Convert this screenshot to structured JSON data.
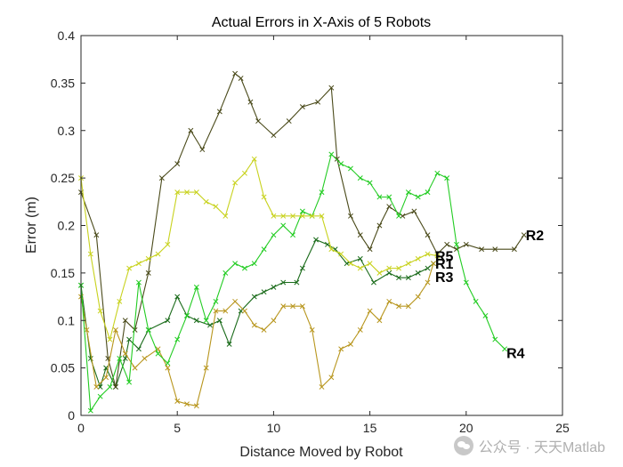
{
  "chart_data": {
    "type": "line",
    "title": "Actual Errors in X-Axis of 5 Robots",
    "xlabel": "Distance Moved by Robot",
    "ylabel": "Error (m)",
    "xlim": [
      0,
      25
    ],
    "ylim": [
      0,
      0.4
    ],
    "xticks": [
      0,
      5,
      10,
      15,
      20,
      25
    ],
    "yticks": [
      0,
      0.05,
      0.1,
      0.15,
      0.2,
      0.25,
      0.3,
      0.35,
      0.4
    ],
    "xtick_labels": [
      "0",
      "5",
      "10",
      "15",
      "20",
      "25"
    ],
    "ytick_labels": [
      "0",
      "0.05",
      "0.1",
      "0.15",
      "0.2",
      "0.25",
      "0.3",
      "0.35",
      "0.4"
    ],
    "grid": false,
    "marker": "x",
    "series": [
      {
        "name": "R1",
        "color": "#1a6b1a",
        "x": [
          0,
          0.5,
          1.0,
          1.3,
          1.8,
          2.3,
          2.5,
          3.0,
          3.5,
          4.5,
          5.0,
          5.5,
          6.0,
          6.7,
          7.2,
          7.7,
          8.3,
          9.0,
          9.5,
          10.0,
          10.5,
          11.2,
          11.5,
          12.2,
          12.8,
          13.2,
          13.8,
          14.5,
          15.2,
          16.0,
          16.5,
          17.0,
          17.5,
          18.0,
          18.3
        ],
        "y": [
          0.137,
          0.06,
          0.03,
          0.05,
          0.03,
          0.06,
          0.08,
          0.07,
          0.09,
          0.1,
          0.125,
          0.105,
          0.1,
          0.095,
          0.1,
          0.075,
          0.11,
          0.125,
          0.13,
          0.135,
          0.14,
          0.14,
          0.155,
          0.185,
          0.18,
          0.175,
          0.16,
          0.165,
          0.14,
          0.15,
          0.145,
          0.145,
          0.15,
          0.155,
          0.16
        ]
      },
      {
        "name": "R2",
        "color": "#4a4a1a",
        "x": [
          0,
          0.8,
          1.4,
          1.8,
          2.3,
          2.8,
          3.5,
          4.2,
          5.0,
          5.7,
          6.3,
          7.2,
          8.0,
          8.3,
          8.8,
          9.2,
          10.0,
          10.8,
          11.5,
          12.3,
          13.0,
          13.3,
          14.0,
          14.5,
          15.0,
          15.5,
          16.0,
          16.7,
          17.3,
          18.0,
          18.5,
          19.0,
          19.5,
          20.0,
          20.8,
          21.5,
          22.5,
          23.0
        ],
        "y": [
          0.235,
          0.19,
          0.06,
          0.03,
          0.1,
          0.09,
          0.15,
          0.25,
          0.265,
          0.3,
          0.28,
          0.32,
          0.36,
          0.355,
          0.33,
          0.31,
          0.295,
          0.31,
          0.325,
          0.33,
          0.345,
          0.27,
          0.21,
          0.19,
          0.175,
          0.2,
          0.22,
          0.21,
          0.215,
          0.19,
          0.17,
          0.18,
          0.175,
          0.18,
          0.175,
          0.175,
          0.175,
          0.19
        ]
      },
      {
        "name": "R3",
        "color": "#b8961e",
        "x": [
          0,
          0.3,
          0.8,
          1.3,
          1.8,
          2.3,
          2.8,
          3.3,
          4.0,
          4.5,
          5.0,
          5.5,
          6.0,
          6.5,
          7.0,
          7.5,
          8.0,
          8.5,
          9.0,
          9.5,
          10.0,
          10.5,
          11.0,
          11.5,
          12.0,
          12.5,
          13.0,
          13.5,
          14.0,
          14.5,
          15.0,
          15.5,
          16.0,
          16.5,
          17.0,
          17.5,
          18.0,
          18.3
        ],
        "y": [
          0.125,
          0.09,
          0.03,
          0.04,
          0.09,
          0.065,
          0.05,
          0.06,
          0.07,
          0.05,
          0.015,
          0.012,
          0.01,
          0.05,
          0.11,
          0.11,
          0.12,
          0.11,
          0.095,
          0.09,
          0.1,
          0.115,
          0.115,
          0.115,
          0.09,
          0.03,
          0.04,
          0.07,
          0.075,
          0.09,
          0.11,
          0.1,
          0.12,
          0.115,
          0.115,
          0.125,
          0.14,
          0.16
        ]
      },
      {
        "name": "R4",
        "color": "#22cc22",
        "x": [
          0,
          0.5,
          1.0,
          1.5,
          2.0,
          2.5,
          3.0,
          3.5,
          4.0,
          4.5,
          5.0,
          5.5,
          6.0,
          6.5,
          7.0,
          7.5,
          8.0,
          8.5,
          9.0,
          9.5,
          10.0,
          10.5,
          11.0,
          11.5,
          12.0,
          12.5,
          13.0,
          13.5,
          14.0,
          14.5,
          15.0,
          15.5,
          16.0,
          16.5,
          17.0,
          17.5,
          18.0,
          18.5,
          19.0,
          19.5,
          20.0,
          20.5,
          21.0,
          21.5,
          22.0
        ],
        "y": [
          0.137,
          0.005,
          0.02,
          0.03,
          0.06,
          0.035,
          0.14,
          0.09,
          0.065,
          0.055,
          0.08,
          0.105,
          0.135,
          0.1,
          0.12,
          0.15,
          0.16,
          0.155,
          0.16,
          0.175,
          0.19,
          0.2,
          0.19,
          0.215,
          0.21,
          0.235,
          0.275,
          0.265,
          0.26,
          0.25,
          0.245,
          0.23,
          0.23,
          0.21,
          0.235,
          0.23,
          0.235,
          0.255,
          0.25,
          0.18,
          0.14,
          0.12,
          0.105,
          0.08,
          0.07
        ]
      },
      {
        "name": "R5",
        "color": "#c8d21e",
        "x": [
          0,
          0.5,
          1.0,
          1.5,
          2.0,
          2.5,
          3.0,
          3.5,
          4.0,
          4.5,
          5.0,
          5.5,
          6.0,
          6.5,
          7.0,
          7.5,
          8.0,
          8.5,
          9.0,
          9.5,
          10.0,
          10.5,
          11.0,
          11.5,
          12.0,
          12.5,
          13.0,
          13.5,
          14.0,
          14.5,
          15.0,
          15.5,
          16.0,
          16.5,
          17.0,
          17.5,
          18.0,
          18.5
        ],
        "y": [
          0.25,
          0.17,
          0.11,
          0.08,
          0.12,
          0.155,
          0.16,
          0.165,
          0.17,
          0.18,
          0.235,
          0.235,
          0.235,
          0.225,
          0.22,
          0.21,
          0.245,
          0.255,
          0.27,
          0.23,
          0.21,
          0.21,
          0.21,
          0.21,
          0.21,
          0.21,
          0.175,
          0.17,
          0.16,
          0.155,
          0.16,
          0.15,
          0.155,
          0.155,
          0.16,
          0.165,
          0.17,
          0.168
        ]
      }
    ],
    "end_labels": [
      {
        "series": "R1",
        "text": "R1",
        "x": 18.3,
        "y": 0.16
      },
      {
        "series": "R2",
        "text": "R2",
        "x": 23.0,
        "y": 0.19
      },
      {
        "series": "R3",
        "text": "R3",
        "x": 18.3,
        "y": 0.146
      },
      {
        "series": "R4",
        "text": "R4",
        "x": 22.0,
        "y": 0.066
      },
      {
        "series": "R5",
        "text": "R5",
        "x": 18.3,
        "y": 0.168
      }
    ]
  },
  "watermark": {
    "text": "公众号 · 天天Matlab",
    "icon": "wechat-icon"
  }
}
